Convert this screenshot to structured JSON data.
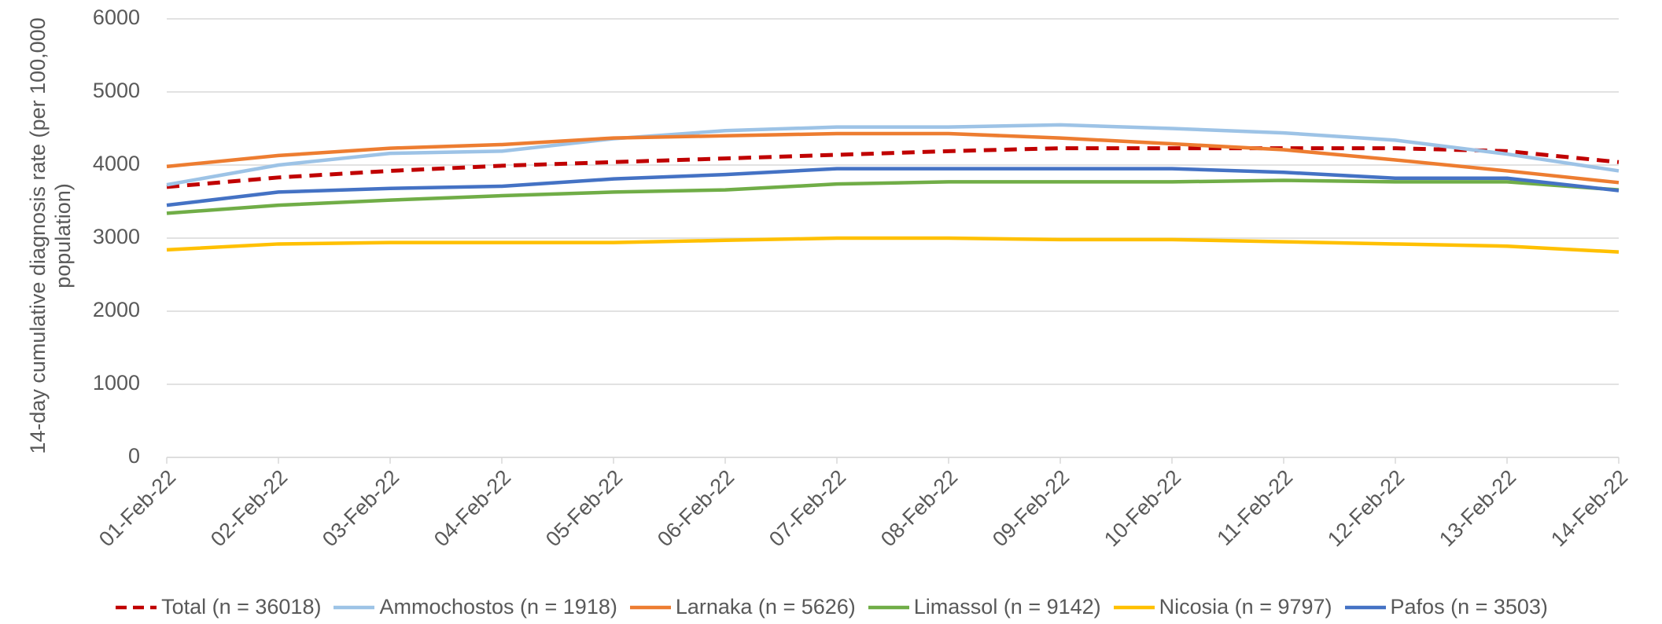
{
  "chart_data": {
    "type": "line",
    "y_label": "14-day cumulative diagnosis rate (per 100,000 population)",
    "categories": [
      "01-Feb-22",
      "02-Feb-22",
      "03-Feb-22",
      "04-Feb-22",
      "05-Feb-22",
      "06-Feb-22",
      "07-Feb-22",
      "08-Feb-22",
      "09-Feb-22",
      "10-Feb-22",
      "11-Feb-22",
      "12-Feb-22",
      "13-Feb-22",
      "14-Feb-22"
    ],
    "series": [
      {
        "name": "Total (n = 36018)",
        "color": "#c00000",
        "dashed": true,
        "values": [
          3700,
          3830,
          3920,
          3990,
          4040,
          4090,
          4140,
          4190,
          4230,
          4230,
          4230,
          4230,
          4190,
          4040
        ]
      },
      {
        "name": "Ammochostos (n = 1918)",
        "color": "#9dc3e6",
        "values": [
          3730,
          4000,
          4160,
          4190,
          4360,
          4470,
          4520,
          4520,
          4550,
          4500,
          4440,
          4340,
          4150,
          3920
        ]
      },
      {
        "name": "Larnaka (n = 5626)",
        "color": "#ed7d31",
        "values": [
          3980,
          4130,
          4230,
          4280,
          4370,
          4400,
          4430,
          4430,
          4370,
          4290,
          4210,
          4070,
          3920,
          3760
        ]
      },
      {
        "name": "Limassol (n = 9142)",
        "color": "#70ad47",
        "values": [
          3340,
          3450,
          3520,
          3580,
          3630,
          3660,
          3740,
          3770,
          3770,
          3770,
          3790,
          3770,
          3770,
          3660
        ]
      },
      {
        "name": "Nicosia (n = 9797)",
        "color": "#ffc000",
        "values": [
          2840,
          2920,
          2940,
          2940,
          2940,
          2970,
          3000,
          3000,
          2980,
          2980,
          2950,
          2920,
          2890,
          2810
        ]
      },
      {
        "name": "Pafos (n = 3503)",
        "color": "#4472c4",
        "values": [
          3450,
          3630,
          3680,
          3710,
          3810,
          3870,
          3950,
          3950,
          3950,
          3950,
          3900,
          3820,
          3820,
          3650
        ]
      }
    ],
    "ylim": [
      0,
      6000
    ],
    "yticks": [
      0,
      1000,
      2000,
      3000,
      4000,
      5000,
      6000
    ],
    "grid": true,
    "legend": "bottom"
  }
}
